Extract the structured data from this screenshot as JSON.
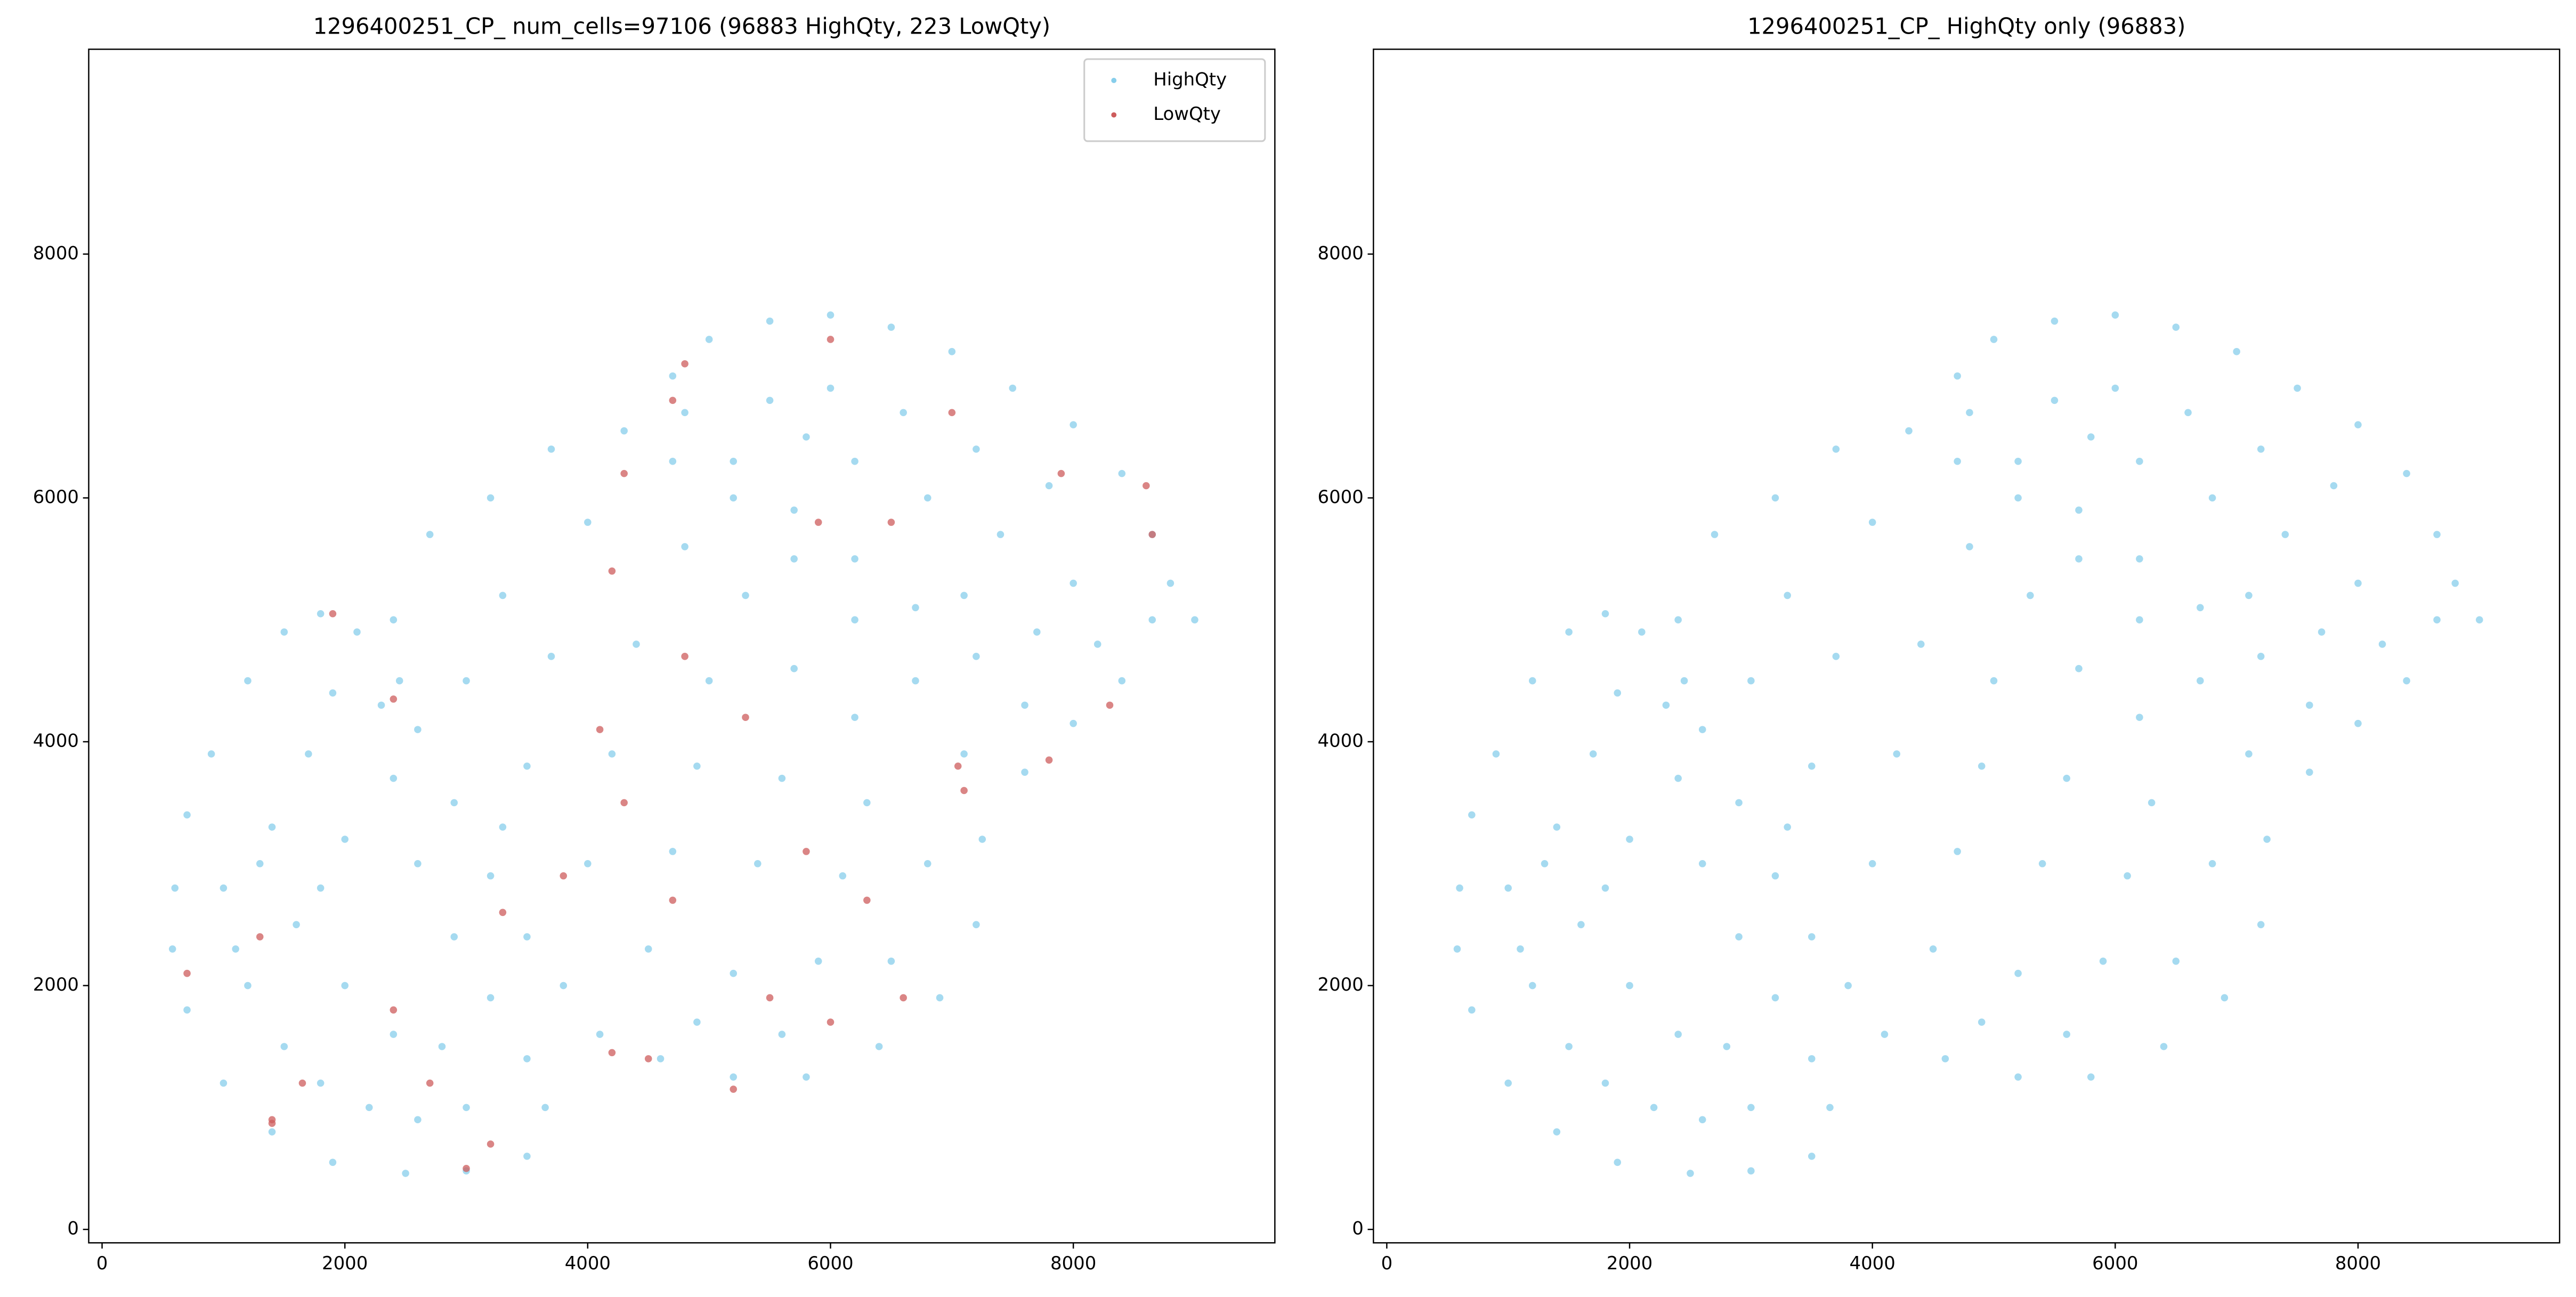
{
  "chart_data": [
    {
      "type": "scatter",
      "title": "1296400251_CP_ num_cells=97106 (96883 HighQty, 223 LowQty)",
      "xlim": [
        -110,
        9660
      ],
      "ylim": [
        -110,
        9680
      ],
      "xticks": [
        0,
        2000,
        4000,
        6000,
        8000
      ],
      "yticks": [
        0,
        2000,
        4000,
        6000,
        8000
      ],
      "legend": "upper right",
      "series": [
        {
          "name": "HighQty",
          "color": "#87ceeb",
          "x": [
            600,
            700,
            900,
            1200,
            1500,
            1800,
            2100,
            2300,
            2400,
            2600,
            2900,
            3200,
            3500,
            3650,
            3500,
            3000,
            2500,
            1900,
            1400,
            1000,
            700,
            580,
            1200,
            1500,
            1800,
            2200,
            2600,
            3000,
            1000,
            1400,
            1700,
            1900,
            1600,
            2000,
            2400,
            2800,
            1300,
            2000,
            1800,
            1100,
            2400,
            2700,
            3200,
            3700,
            4300,
            4700,
            5200,
            5700,
            6200,
            6700,
            7100,
            7250,
            7200,
            6900,
            6400,
            5800,
            5200,
            4600,
            4100,
            3800,
            3500,
            3200,
            2900,
            2600,
            2450,
            3300,
            4000,
            4800,
            5300,
            3000,
            3700,
            4400,
            5000,
            5700,
            6200,
            3500,
            4200,
            4900,
            5600,
            6300,
            6800,
            4000,
            4700,
            5400,
            6100,
            4500,
            5200,
            5900,
            6500,
            4900,
            5600,
            3300,
            4700,
            5000,
            5500,
            6000,
            6500,
            7000,
            7500,
            8000,
            8400,
            8650,
            8650,
            8400,
            8000,
            7600,
            7200,
            6700,
            6200,
            5700,
            5200,
            4800,
            5500,
            6000,
            6600,
            7200,
            7800,
            6200,
            6800,
            7400,
            8000,
            7100,
            7700,
            8200,
            5800,
            9000,
            8800,
            7600
          ],
          "values": [
            2800,
            3400,
            3900,
            4500,
            4900,
            5050,
            4900,
            4300,
            3700,
            3000,
            2400,
            1900,
            1400,
            1000,
            600,
            480,
            460,
            550,
            800,
            1200,
            1800,
            2300,
            2000,
            1500,
            1200,
            1000,
            900,
            1000,
            2800,
            3300,
            3900,
            4400,
            2500,
            2000,
            1600,
            1500,
            3000,
            3200,
            2800,
            2300,
            5000,
            5700,
            6000,
            6400,
            6550,
            6300,
            6000,
            5500,
            5000,
            4500,
            3900,
            3200,
            2500,
            1900,
            1500,
            1250,
            1250,
            1400,
            1600,
            2000,
            2400,
            2900,
            3500,
            4100,
            4500,
            5200,
            5800,
            5600,
            5200,
            4500,
            4700,
            4800,
            4500,
            4600,
            4200,
            3800,
            3900,
            3800,
            3700,
            3500,
            3000,
            3000,
            3100,
            3000,
            2900,
            2300,
            2100,
            2200,
            2200,
            1700,
            1600,
            3300,
            7000,
            7300,
            7450,
            7500,
            7400,
            7200,
            6900,
            6600,
            6200,
            5700,
            5000,
            4500,
            4150,
            4300,
            4700,
            5100,
            5500,
            5900,
            6300,
            6700,
            6800,
            6900,
            6700,
            6400,
            6100,
            6300,
            6000,
            5700,
            5300,
            5200,
            4900,
            4800,
            6500,
            5000,
            5300,
            3750
          ]
        },
        {
          "name": "LowQty",
          "color": "#cd5c5c",
          "x": [
            1400,
            1650,
            1400,
            700,
            1300,
            2400,
            2700,
            3300,
            3200,
            3000,
            4200,
            4500,
            5200,
            5500,
            6000,
            6600,
            7050,
            7100,
            6300,
            5800,
            4700,
            4300,
            3800,
            4100,
            4800,
            5300,
            4200,
            4300,
            5900,
            6500,
            4700,
            4800,
            6000,
            7000,
            7900,
            8600,
            8650,
            8300,
            7800,
            1900,
            2400
          ],
          "values": [
            900,
            1200,
            870,
            2100,
            2400,
            1800,
            1200,
            2600,
            700,
            500,
            1450,
            1400,
            1150,
            1900,
            1700,
            1900,
            3800,
            3600,
            2700,
            3100,
            2700,
            3500,
            2900,
            4100,
            4700,
            4200,
            5400,
            6200,
            5800,
            5800,
            6800,
            7100,
            7300,
            6700,
            6200,
            6100,
            5700,
            4300,
            3850,
            5050,
            4350
          ]
        }
      ]
    },
    {
      "type": "scatter",
      "title": "1296400251_CP_ HighQty only (96883)",
      "xlim": [
        -110,
        9660
      ],
      "ylim": [
        -110,
        9680
      ],
      "xticks": [
        0,
        2000,
        4000,
        6000,
        8000
      ],
      "yticks": [
        0,
        2000,
        4000,
        6000,
        8000
      ],
      "series": [
        {
          "name": "HighQty",
          "color": "#87ceeb",
          "x": [
            600,
            700,
            900,
            1200,
            1500,
            1800,
            2100,
            2300,
            2400,
            2600,
            2900,
            3200,
            3500,
            3650,
            3500,
            3000,
            2500,
            1900,
            1400,
            1000,
            700,
            580,
            1200,
            1500,
            1800,
            2200,
            2600,
            3000,
            1000,
            1400,
            1700,
            1900,
            1600,
            2000,
            2400,
            2800,
            1300,
            2000,
            1800,
            1100,
            2400,
            2700,
            3200,
            3700,
            4300,
            4700,
            5200,
            5700,
            6200,
            6700,
            7100,
            7250,
            7200,
            6900,
            6400,
            5800,
            5200,
            4600,
            4100,
            3800,
            3500,
            3200,
            2900,
            2600,
            2450,
            3300,
            4000,
            4800,
            5300,
            3000,
            3700,
            4400,
            5000,
            5700,
            6200,
            3500,
            4200,
            4900,
            5600,
            6300,
            6800,
            4000,
            4700,
            5400,
            6100,
            4500,
            5200,
            5900,
            6500,
            4900,
            5600,
            3300,
            4700,
            5000,
            5500,
            6000,
            6500,
            7000,
            7500,
            8000,
            8400,
            8650,
            8650,
            8400,
            8000,
            7600,
            7200,
            6700,
            6200,
            5700,
            5200,
            4800,
            5500,
            6000,
            6600,
            7200,
            7800,
            6200,
            6800,
            7400,
            8000,
            7100,
            7700,
            8200,
            5800,
            9000,
            8800,
            7600
          ],
          "values": [
            2800,
            3400,
            3900,
            4500,
            4900,
            5050,
            4900,
            4300,
            3700,
            3000,
            2400,
            1900,
            1400,
            1000,
            600,
            480,
            460,
            550,
            800,
            1200,
            1800,
            2300,
            2000,
            1500,
            1200,
            1000,
            900,
            1000,
            2800,
            3300,
            3900,
            4400,
            2500,
            2000,
            1600,
            1500,
            3000,
            3200,
            2800,
            2300,
            5000,
            5700,
            6000,
            6400,
            6550,
            6300,
            6000,
            5500,
            5000,
            4500,
            3900,
            3200,
            2500,
            1900,
            1500,
            1250,
            1250,
            1400,
            1600,
            2000,
            2400,
            2900,
            3500,
            4100,
            4500,
            5200,
            5800,
            5600,
            5200,
            4500,
            4700,
            4800,
            4500,
            4600,
            4200,
            3800,
            3900,
            3800,
            3700,
            3500,
            3000,
            3000,
            3100,
            3000,
            2900,
            2300,
            2100,
            2200,
            2200,
            1700,
            1600,
            3300,
            7000,
            7300,
            7450,
            7500,
            7400,
            7200,
            6900,
            6600,
            6200,
            5700,
            5000,
            4500,
            4150,
            4300,
            4700,
            5100,
            5500,
            5900,
            6300,
            6700,
            6800,
            6900,
            6700,
            6400,
            6100,
            6300,
            6000,
            5700,
            5300,
            5200,
            4900,
            4800,
            6500,
            5000,
            5300,
            3750
          ]
        }
      ]
    }
  ]
}
